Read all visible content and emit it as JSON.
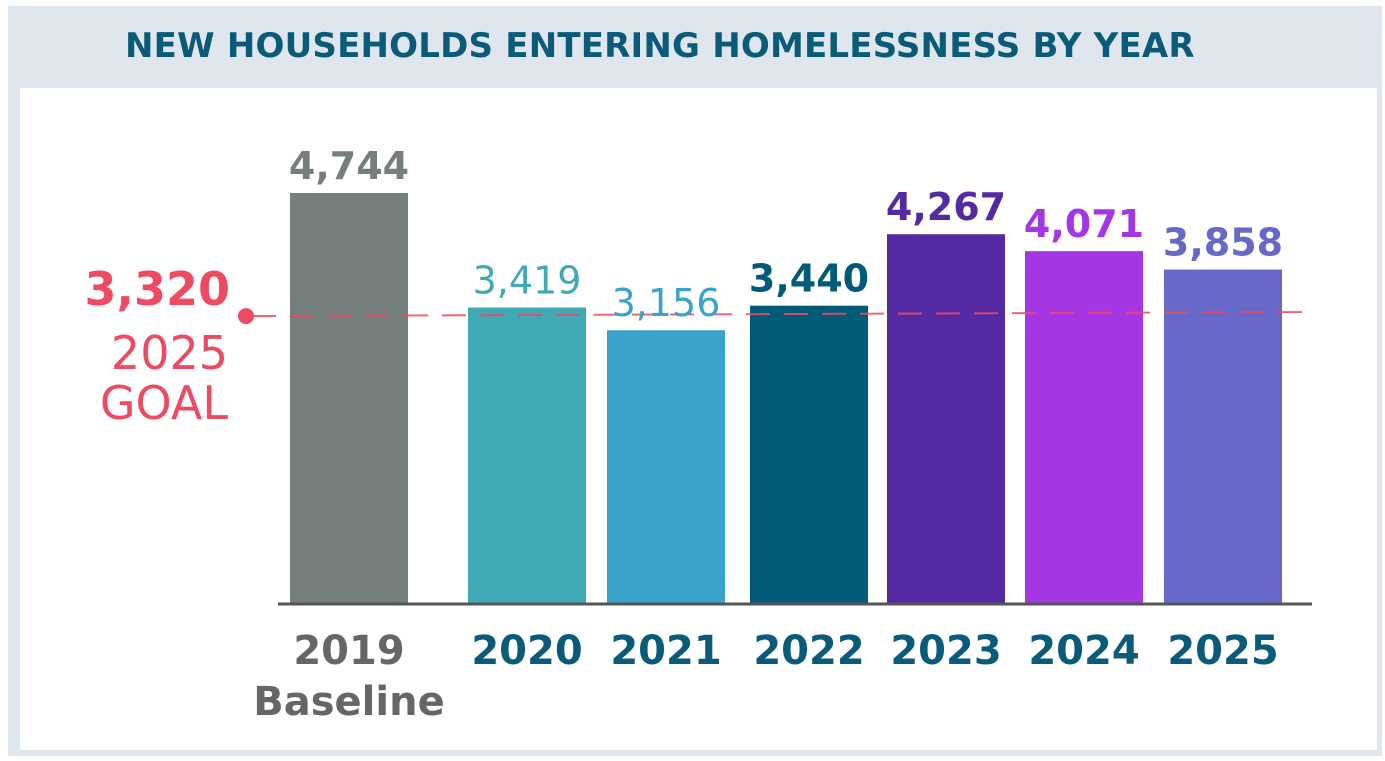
{
  "chart_data": {
    "type": "bar",
    "title": "NEW HOUSEHOLDS ENTERING HOMELESSNESS BY YEAR",
    "xlabel": "",
    "ylabel": "",
    "categories": [
      "2019",
      "2020",
      "2021",
      "2022",
      "2023",
      "2024",
      "2025"
    ],
    "category_sublabels": [
      "Baseline",
      "",
      "",
      "",
      "",
      "",
      ""
    ],
    "values": [
      4744,
      3419,
      3156,
      3440,
      4267,
      4071,
      3858
    ],
    "value_labels": [
      "4,744",
      "3,419",
      "3,156",
      "3,440",
      "4,267",
      "4,071",
      "3,858"
    ],
    "bar_colors": [
      "#757f7e",
      "#3fa9b5",
      "#3aa3cc",
      "#025a79",
      "#542aa3",
      "#a437e3",
      "#6868c8"
    ],
    "label_colors": [
      "#757f7e",
      "#3fa9b5",
      "#3aa3cc",
      "#025a79",
      "#542aa3",
      "#a437e3",
      "#6868c8"
    ],
    "category_label_colors": [
      "#666666",
      "#0a5a7a",
      "#0a5a7a",
      "#0a5a7a",
      "#0a5a7a",
      "#0a5a7a",
      "#0a5a7a"
    ],
    "ylim": [
      0,
      4744
    ],
    "grid": false,
    "legend": "none",
    "reference_line": {
      "value": 3320,
      "value_label": "3,320",
      "label_lines": [
        "2025",
        "GOAL"
      ],
      "color": "#ee4a62",
      "style": "dashed"
    }
  }
}
